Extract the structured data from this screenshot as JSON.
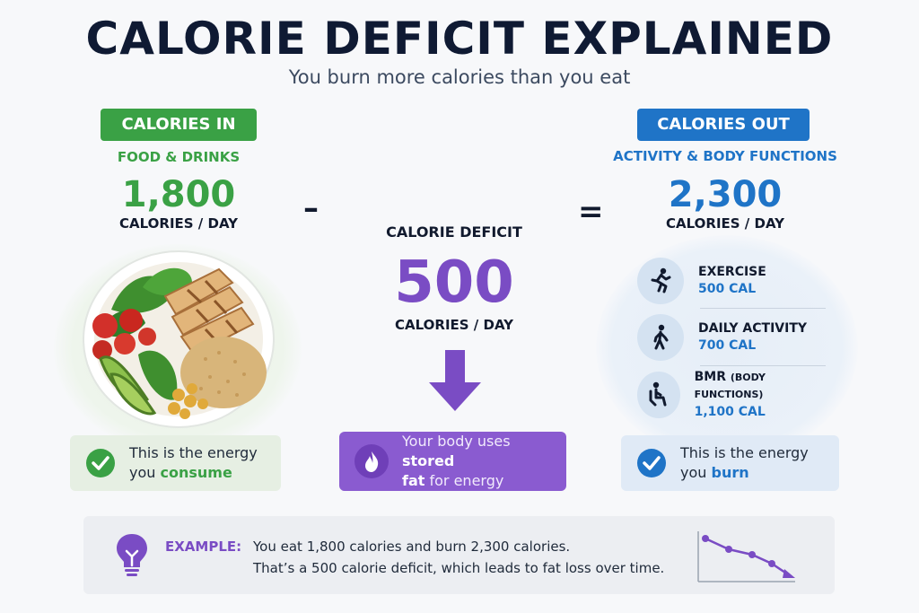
{
  "title": "CALORIE DEFICIT EXPLAINED",
  "subtitle": "You burn more calories than you eat",
  "calories_in": {
    "pill": "CALORIES IN",
    "caption": "FOOD & DRINKS",
    "number": "1,800",
    "unit": "CALORIES / DAY",
    "card_text_1": "This is the energy",
    "card_text_2": "you ",
    "card_highlight": "consume",
    "accent": "#3aa145"
  },
  "operators": {
    "minus": "–",
    "equals": "="
  },
  "deficit": {
    "caption": "CALORIE DEFICIT",
    "number": "500",
    "unit": "CALORIES / DAY",
    "card_text_1": "Your body uses ",
    "card_highlight_1": "stored",
    "card_highlight_2": "fat",
    "card_text_2": " for energy",
    "accent": "#7a4cc4"
  },
  "calories_out": {
    "pill": "CALORIES OUT",
    "caption": "ACTIVITY & BODY FUNCTIONS",
    "number": "2,300",
    "unit": "CALORIES / DAY",
    "activities": [
      {
        "label": "EXERCISE",
        "sublabel": "",
        "value": "500",
        "unit": "CAL",
        "icon": "running-person-icon"
      },
      {
        "label": "DAILY ACTIVITY",
        "sublabel": "",
        "value": "700",
        "unit": "CAL",
        "icon": "walking-person-icon"
      },
      {
        "label": "BMR",
        "sublabel": "(BODY FUNCTIONS)",
        "value": "1,100",
        "unit": "CAL",
        "icon": "seated-person-icon"
      }
    ],
    "card_text_1": "This is the energy",
    "card_text_2": "you ",
    "card_highlight": "burn",
    "accent": "#1f74c7"
  },
  "example": {
    "label": "EXAMPLE:",
    "line1": "You eat 1,800 calories and burn 2,300 calories.",
    "line2": "That’s a 500 calorie deficit, which leads to fat loss over time.",
    "icon": "lightbulb-icon"
  }
}
